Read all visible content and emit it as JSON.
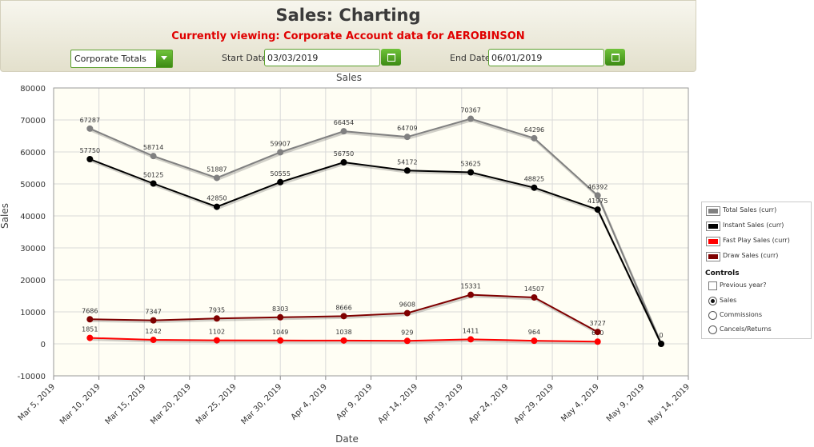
{
  "header": {
    "title": "Sales: Charting",
    "subtitle": "Currently viewing: Corporate Account data for AEROBINSON",
    "account_select": "Corporate Totals",
    "start_date_label": "Start Date",
    "start_date_value": "03/03/2019",
    "end_date_label": "End Date",
    "end_date_value": "06/01/2019"
  },
  "legend": {
    "items": [
      {
        "label": "Total Sales (curr)",
        "color": "#808080"
      },
      {
        "label": "Instant Sales (curr)",
        "color": "#000000"
      },
      {
        "label": "Fast Play Sales (curr)",
        "color": "#ff0000"
      },
      {
        "label": "Draw Sales (curr)",
        "color": "#7f0000"
      }
    ],
    "controls_title": "Controls",
    "previous_year": "Previous year?",
    "options": [
      {
        "label": "Sales",
        "selected": true
      },
      {
        "label": "Commissions",
        "selected": false
      },
      {
        "label": "Cancels/Returns",
        "selected": false
      }
    ]
  },
  "chart_data": {
    "type": "line",
    "title": "Sales",
    "xlabel": "Date",
    "ylabel": "Sales",
    "ylim": [
      -10000,
      80000
    ],
    "yticks": [
      -10000,
      0,
      10000,
      20000,
      30000,
      40000,
      50000,
      60000,
      70000,
      80000
    ],
    "ytick_labels": [
      "-10000",
      "0",
      "10000",
      "20000",
      "30000",
      "40000",
      "50000",
      "60000",
      "70000",
      "80000"
    ],
    "xlim": [
      "2019-03-05",
      "2019-05-14"
    ],
    "xticks": [
      "2019-03-05",
      "2019-03-10",
      "2019-03-15",
      "2019-03-20",
      "2019-03-25",
      "2019-03-30",
      "2019-04-04",
      "2019-04-09",
      "2019-04-14",
      "2019-04-19",
      "2019-04-24",
      "2019-04-29",
      "2019-05-04",
      "2019-05-09",
      "2019-05-14"
    ],
    "xtick_labels": [
      "Mar 5, 2019",
      "Mar 10, 2019",
      "Mar 15, 2019",
      "Mar 20, 2019",
      "Mar 25, 2019",
      "Mar 30, 2019",
      "Apr 4, 2019",
      "Apr 9, 2019",
      "Apr 14, 2019",
      "Apr 19, 2019",
      "Apr 24, 2019",
      "Apr 29, 2019",
      "May 4, 2019",
      "May 9, 2019",
      "May 14, 2019"
    ],
    "grid": true,
    "legend_position": "right",
    "series": [
      {
        "name": "Total Sales (curr)",
        "color": "#808080",
        "x": [
          "2019-03-09",
          "2019-03-16",
          "2019-03-23",
          "2019-03-30",
          "2019-04-06",
          "2019-04-13",
          "2019-04-20",
          "2019-04-27",
          "2019-05-04",
          "2019-05-11"
        ],
        "values": [
          67287,
          58714,
          51887,
          59907,
          66454,
          64709,
          70367,
          64296,
          46392,
          0
        ],
        "labels": [
          "67287",
          "58714",
          "51887",
          "59907",
          "66454",
          "64709",
          "70367",
          "64296",
          "46392",
          "0"
        ]
      },
      {
        "name": "Instant Sales (curr)",
        "color": "#000000",
        "x": [
          "2019-03-09",
          "2019-03-16",
          "2019-03-23",
          "2019-03-30",
          "2019-04-06",
          "2019-04-13",
          "2019-04-20",
          "2019-04-27",
          "2019-05-04",
          "2019-05-11"
        ],
        "values": [
          57750,
          50125,
          42850,
          50555,
          56750,
          54172,
          53625,
          48825,
          41975,
          0
        ],
        "labels": [
          "57750",
          "50125",
          "42850",
          "50555",
          "56750",
          "54172",
          "53625",
          "48825",
          "41975",
          ""
        ]
      },
      {
        "name": "Fast Play Sales (curr)",
        "color": "#ff0000",
        "x": [
          "2019-03-09",
          "2019-03-16",
          "2019-03-23",
          "2019-03-30",
          "2019-04-06",
          "2019-04-13",
          "2019-04-20",
          "2019-04-27",
          "2019-05-04"
        ],
        "values": [
          1851,
          1242,
          1102,
          1049,
          1038,
          929,
          1411,
          964,
          690
        ],
        "labels": [
          "1851",
          "1242",
          "1102",
          "1049",
          "1038",
          "929",
          "1411",
          "964",
          "690"
        ]
      },
      {
        "name": "Draw Sales (curr)",
        "color": "#7f0000",
        "x": [
          "2019-03-09",
          "2019-03-16",
          "2019-03-23",
          "2019-03-30",
          "2019-04-06",
          "2019-04-13",
          "2019-04-20",
          "2019-04-27",
          "2019-05-04"
        ],
        "values": [
          7686,
          7347,
          7935,
          8303,
          8666,
          9608,
          15331,
          14507,
          3727
        ],
        "labels": [
          "7686",
          "7347",
          "7935",
          "8303",
          "8666",
          "9608",
          "15331",
          "14507",
          "3727"
        ]
      }
    ]
  }
}
